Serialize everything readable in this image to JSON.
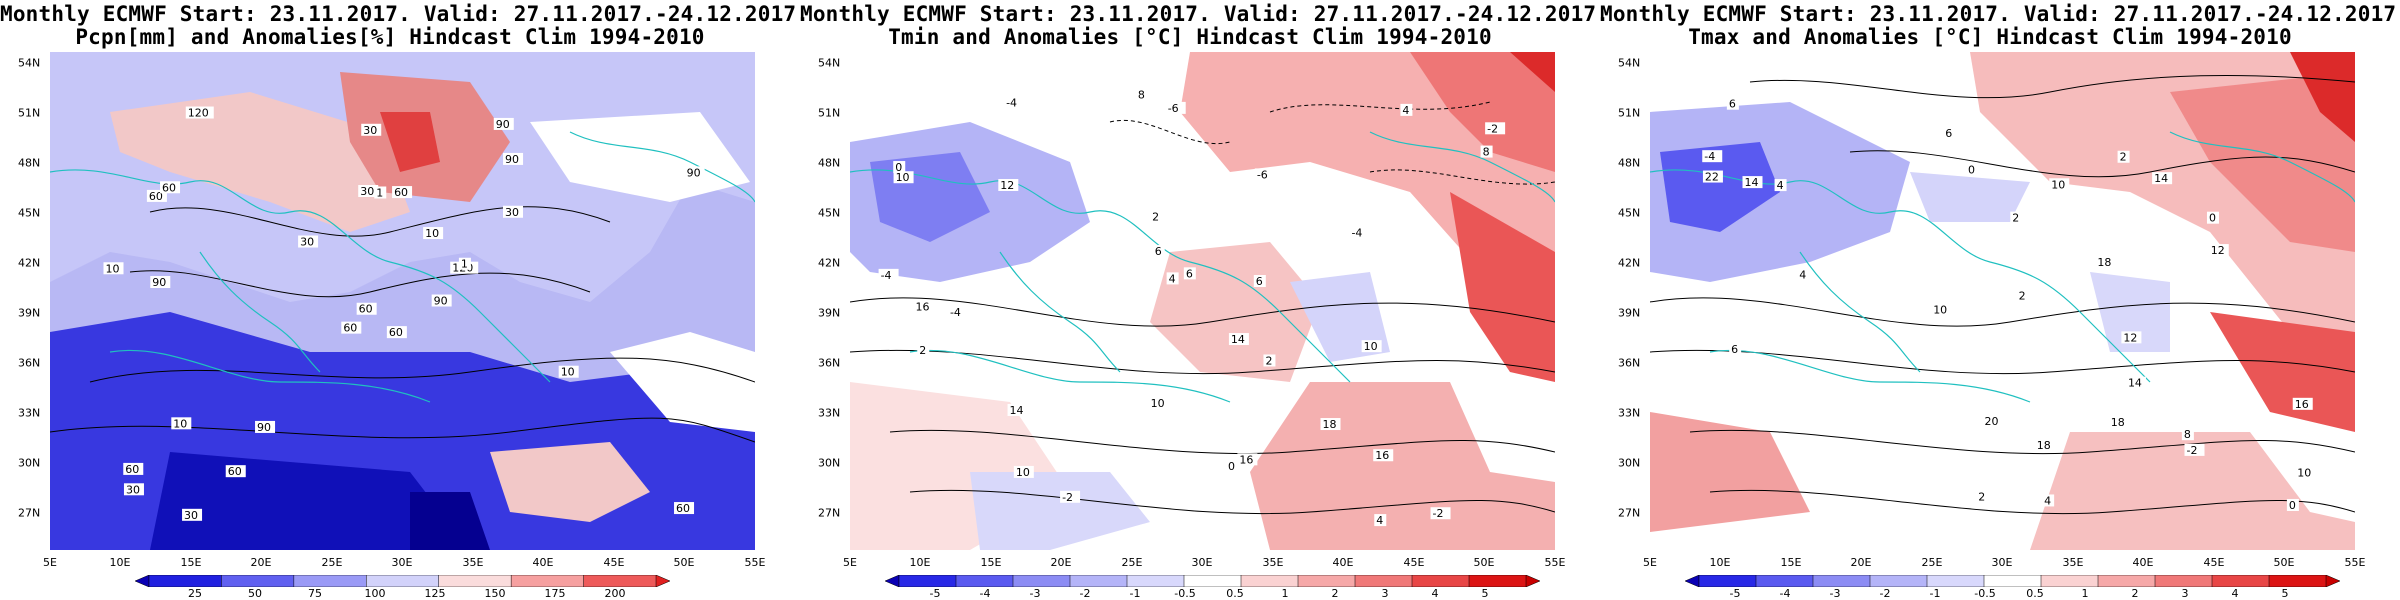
{
  "panels": [
    {
      "title1": "Monthly ECMWF Start: 23.11.2017. Valid: 27.11.2017.-24.12.2017.",
      "title2": "Pcpn[mm] and Anomalies[%] Hindcast Clim 1994-2010",
      "colorbar_labels": [
        "25",
        "50",
        "75",
        "100",
        "125",
        "150",
        "175",
        "200"
      ],
      "colorbar_colors": [
        "#0a00b4",
        "#2020e0",
        "#6060f0",
        "#9a9af6",
        "#d2d2fa",
        "#fadcdc",
        "#f6a0a0",
        "#ee5a5a",
        "#e02020"
      ],
      "contour_labels": [
        "60",
        "60",
        "60",
        "60",
        "120",
        "90",
        "90",
        "60",
        "90",
        "90",
        "120",
        "60",
        "90",
        "90",
        "60",
        "30",
        "30",
        "30",
        "10",
        "10",
        "30",
        "30",
        "60",
        "1",
        "1",
        "10",
        "60",
        "30",
        "10"
      ]
    },
    {
      "title1": "Monthly ECMWF Start: 23.11.2017. Valid: 27.11.2017.-24.12.2017.",
      "title2": "Tmin and Anomalies [°C] Hindcast Clim 1994-2010",
      "colorbar_labels": [
        "-5",
        "-4",
        "-3",
        "-2",
        "-1",
        "-0.5",
        "0.5",
        "1",
        "2",
        "3",
        "4",
        "5"
      ],
      "colorbar_colors": [
        "#0a00b4",
        "#2828e6",
        "#5a5af0",
        "#8c8cf4",
        "#b4b4f8",
        "#d8d8fc",
        "#ffffff",
        "#fad2d2",
        "#f6a8a8",
        "#f07878",
        "#e84646",
        "#dc1414",
        "#c80000"
      ],
      "contour_labels": [
        "-4",
        "-6",
        "-4",
        "-2",
        "0",
        "-2",
        "-4",
        "-6",
        "2",
        "4",
        "6",
        "10",
        "8",
        "10",
        "12",
        "14",
        "16",
        "16",
        "14",
        "10",
        "18",
        "16",
        "8",
        "6",
        "10",
        "4",
        "2",
        "-4",
        "-2",
        "0",
        "2",
        "4",
        "6"
      ]
    },
    {
      "title1": "Monthly ECMWF Start: 23.11.2017. Valid: 27.11.2017.-24.12.2017.",
      "title2": "Tmax and Anomalies [°C] Hindcast Clim 1994-2010",
      "colorbar_labels": [
        "-5",
        "-4",
        "-3",
        "-2",
        "-1",
        "-0.5",
        "0.5",
        "1",
        "2",
        "3",
        "4",
        "5"
      ],
      "colorbar_colors": [
        "#0a00b4",
        "#2828e6",
        "#5a5af0",
        "#8c8cf4",
        "#b4b4f8",
        "#d8d8fc",
        "#ffffff",
        "#fad2d2",
        "#f6a8a8",
        "#f07878",
        "#e84646",
        "#dc1414",
        "#c80000"
      ],
      "contour_labels": [
        "2",
        "-2",
        "-4",
        "0",
        "2",
        "0",
        "4",
        "2",
        "4",
        "6",
        "8",
        "10",
        "12",
        "14",
        "10",
        "14",
        "16",
        "18",
        "18",
        "14",
        "22",
        "20",
        "18",
        "10",
        "12",
        "4",
        "6",
        "0",
        "2",
        "6"
      ]
    }
  ],
  "axes": {
    "lat_labels": [
      "54N",
      "51N",
      "48N",
      "45N",
      "42N",
      "39N",
      "36N",
      "33N",
      "30N",
      "27N"
    ],
    "lon_labels": [
      "5E",
      "10E",
      "15E",
      "20E",
      "25E",
      "30E",
      "35E",
      "40E",
      "45E",
      "50E",
      "55E"
    ]
  }
}
